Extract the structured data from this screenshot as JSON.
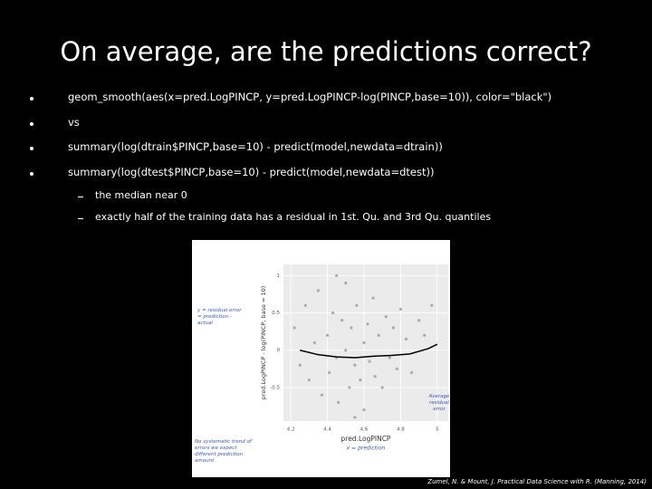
{
  "title": "On average, are the predictions correct?",
  "bullets": [
    "geom_smooth(aes(x=pred.LogPINCP, y=pred.LogPINCP-log(PINCP,base=10)), color=\"black\")",
    "vs",
    "summary(log(dtrain$PINCP,base=10) - predict(model,newdata=dtrain))",
    "summary(log(dtest$PINCP,base=10) - predict(model,newdata=dtest))"
  ],
  "sub_bullets": [
    "the median near 0",
    "exactly half of the training data has a residual in 1st. Qu. and 3rd Qu. quantiles"
  ],
  "citation": "Zumel, N. & Mount, J. Practical Data Science with R. (Manning, 2014)",
  "chart_data": {
    "type": "scatter",
    "x_label": "pred.LogPINCP",
    "x_note": "x = prediction",
    "y_label": "pred.LogPINCP - log(PINCP, base = 10)",
    "annotations": [
      "y = residual error = prediction - actual",
      "Average residual error",
      "No systematic trend of errors we expect different prediction amount"
    ],
    "xlim": [
      4.16,
      5.06
    ],
    "xticks": [
      4.2,
      4.4,
      4.6,
      4.8,
      5.0
    ],
    "ylim": [
      -0.95,
      1.15
    ],
    "yticks": [
      -0.5,
      0,
      0.5,
      1.0
    ],
    "grid": true,
    "series": [
      {
        "color": "#9a9a9a",
        "x": [
          4.22,
          4.25,
          4.28,
          4.3,
          4.33,
          4.35,
          4.37,
          4.4,
          4.41,
          4.43,
          4.45,
          4.46,
          4.48,
          4.5,
          4.5,
          4.52,
          4.53,
          4.55,
          4.56,
          4.58,
          4.6,
          4.6,
          4.62,
          4.63,
          4.65,
          4.66,
          4.68,
          4.7,
          4.72,
          4.74,
          4.76,
          4.78,
          4.8,
          4.83,
          4.86,
          4.9,
          4.93,
          4.97,
          4.45,
          4.55
        ],
        "values": [
          0.3,
          -0.2,
          0.6,
          -0.4,
          0.1,
          0.8,
          -0.6,
          0.2,
          -0.3,
          0.5,
          -0.1,
          -0.7,
          0.4,
          0.0,
          0.9,
          -0.5,
          0.3,
          -0.2,
          0.6,
          -0.4,
          0.1,
          -0.8,
          0.35,
          -0.15,
          0.7,
          -0.35,
          0.2,
          -0.5,
          0.45,
          -0.1,
          0.3,
          -0.25,
          0.55,
          0.15,
          -0.3,
          0.4,
          0.2,
          0.6,
          1.0,
          -0.9
        ]
      },
      {
        "type": "line",
        "color": "#000000",
        "x": [
          4.25,
          4.35,
          4.45,
          4.55,
          4.65,
          4.75,
          4.85,
          4.95,
          5.0
        ],
        "values": [
          0.0,
          -0.06,
          -0.09,
          -0.1,
          -0.08,
          -0.07,
          -0.05,
          0.02,
          0.08
        ]
      }
    ]
  }
}
